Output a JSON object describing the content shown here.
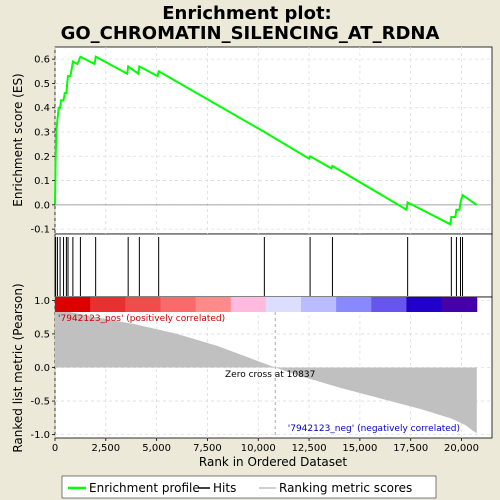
{
  "chart_data": {
    "type": "line",
    "title_line1": "Enrichment plot:",
    "title_line2": "GO_CHROMATIN_SILENCING_AT_RDNA",
    "es_panel": {
      "ylabel": "Enrichment score (ES)",
      "ylim": [
        -0.12,
        0.65
      ],
      "yticks": [
        "-0.1",
        "0.0",
        "0.1",
        "0.2",
        "0.3",
        "0.4",
        "0.5",
        "0.6"
      ],
      "line_color": "#00ff00",
      "points": [
        [
          0,
          0.0
        ],
        [
          30,
          0.18
        ],
        [
          70,
          0.31
        ],
        [
          120,
          0.35
        ],
        [
          180,
          0.4
        ],
        [
          250,
          0.4
        ],
        [
          300,
          0.43
        ],
        [
          420,
          0.43
        ],
        [
          480,
          0.46
        ],
        [
          560,
          0.46
        ],
        [
          600,
          0.5
        ],
        [
          640,
          0.53
        ],
        [
          760,
          0.53
        ],
        [
          820,
          0.56
        ],
        [
          880,
          0.59
        ],
        [
          1100,
          0.58
        ],
        [
          1250,
          0.61
        ],
        [
          1950,
          0.58
        ],
        [
          2000,
          0.61
        ],
        [
          3550,
          0.54
        ],
        [
          3600,
          0.57
        ],
        [
          4100,
          0.54
        ],
        [
          4150,
          0.57
        ],
        [
          5050,
          0.53
        ],
        [
          5100,
          0.55
        ],
        [
          10300,
          0.3
        ],
        [
          12500,
          0.19
        ],
        [
          12550,
          0.2
        ],
        [
          13600,
          0.15
        ],
        [
          13650,
          0.16
        ],
        [
          17300,
          -0.02
        ],
        [
          17350,
          0.01
        ],
        [
          19450,
          -0.08
        ],
        [
          19500,
          -0.05
        ],
        [
          19700,
          -0.05
        ],
        [
          19750,
          -0.02
        ],
        [
          19900,
          -0.02
        ],
        [
          19950,
          0.01
        ],
        [
          20050,
          0.04
        ],
        [
          20750,
          0.0
        ]
      ]
    },
    "hits": [
      30,
      120,
      250,
      420,
      560,
      640,
      880,
      1250,
      2000,
      3600,
      4150,
      5100,
      10300,
      12550,
      13650,
      17350,
      19500,
      19750,
      19950,
      20050
    ],
    "heatbar_colors": [
      "#dd0000",
      "#e83030",
      "#f04c4c",
      "#fa6a6a",
      "#ff8a8a",
      "#ffbbdd",
      "#ddddff",
      "#bbbbff",
      "#8888ff",
      "#6655ee",
      "#2200cc",
      "#4400aa"
    ],
    "metric_panel": {
      "ylabel": "Ranked list metric (Pearson)",
      "ylim": [
        -1.05,
        1.05
      ],
      "yticks": [
        "-1.0",
        "-0.5",
        "0.0",
        "0.5",
        "1.0"
      ],
      "fill_color": "#c0c0c0",
      "points": [
        [
          0,
          0.98
        ],
        [
          100,
          0.92
        ],
        [
          300,
          0.87
        ],
        [
          800,
          0.82
        ],
        [
          2000,
          0.75
        ],
        [
          4000,
          0.64
        ],
        [
          6000,
          0.5
        ],
        [
          8000,
          0.32
        ],
        [
          9500,
          0.15
        ],
        [
          10837,
          0.0
        ],
        [
          12000,
          -0.12
        ],
        [
          14000,
          -0.3
        ],
        [
          16000,
          -0.46
        ],
        [
          18000,
          -0.62
        ],
        [
          19500,
          -0.76
        ],
        [
          20200,
          -0.86
        ],
        [
          20500,
          -0.93
        ],
        [
          20750,
          -0.98
        ]
      ],
      "pos_label": "'7942123_pos' (positively correlated)",
      "neg_label": "'7942123_neg' (negatively correlated)",
      "zero_cross_label": "Zero cross at 10837",
      "zero_cross_x": 10837
    },
    "xlabel": "Rank in Ordered Dataset",
    "xlim": [
      0,
      21500
    ],
    "xticks": [
      "0",
      "2,500",
      "5,000",
      "7,500",
      "10,000",
      "12,500",
      "15,000",
      "17,500",
      "20,000"
    ],
    "xtick_values": [
      0,
      2500,
      5000,
      7500,
      10000,
      12500,
      15000,
      17500,
      20000
    ],
    "legend": {
      "placement": "bottom",
      "items": [
        {
          "label": "Enrichment profile",
          "color": "#00ff00"
        },
        {
          "label": "Hits",
          "color": "#000000"
        },
        {
          "label": "Ranking metric scores",
          "color": "#c0c0c0"
        }
      ]
    }
  }
}
